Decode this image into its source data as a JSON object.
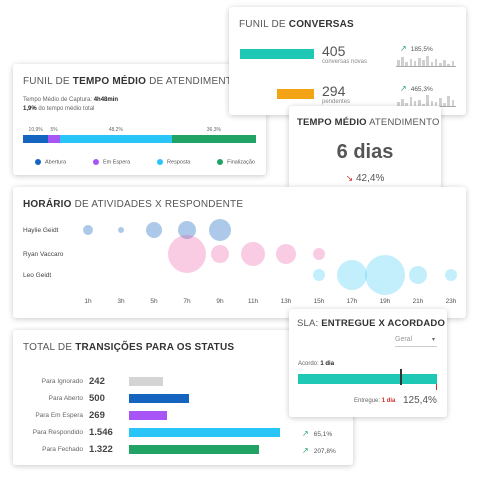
{
  "funil_tempo": {
    "title_a": "FUNIL DE ",
    "title_b": "TEMPO MÉDIO",
    "title_c": " DE ATENDIMENTO",
    "capture_label": "Tempo Médio de Captura: ",
    "capture_value": "4h48min",
    "pct_value": "1,9%",
    "pct_label": " do tempo médio total",
    "segments": [
      {
        "pct": "10,9%",
        "value": 10.9,
        "color": "#1565c0",
        "label": "Abertura"
      },
      {
        "pct": "5%",
        "value": 5,
        "color": "#a855f7",
        "label": "Em Espera"
      },
      {
        "pct": "48,2%",
        "value": 48.2,
        "color": "#29c5f6",
        "label": "Resposta"
      },
      {
        "pct": "36,3%",
        "value": 36.3,
        "color": "#21a366",
        "label": "Finalização"
      }
    ]
  },
  "funil_conversas": {
    "title_a": "FUNIL DE ",
    "title_b": "CONVERSAS",
    "rows": [
      {
        "value": "405",
        "label": "conversas novas",
        "trend": "185,5%",
        "color": "#1ec8b5",
        "fill": 1.0
      },
      {
        "value": "294",
        "label": "pendentes",
        "trend": "465,3%",
        "color": "#f2a414",
        "fill": 0.5
      }
    ]
  },
  "tempo_medio": {
    "title_b": "TEMPO MÉDIO",
    "title_c": " ATENDIMENTO",
    "value": "6 dias",
    "trend": "42,4%"
  },
  "horario": {
    "title_b": "HORÁRIO",
    "title_c": " DE ATIVIDADES X RESPONDENTE",
    "people": [
      "Haylie Geidt",
      "Ryan Vaccaro",
      "Leo Geidt"
    ],
    "hours": [
      "1h",
      "3h",
      "5h",
      "7h",
      "9h",
      "11h",
      "13h",
      "15h",
      "17h",
      "19h",
      "21h",
      "23h"
    ]
  },
  "transicoes": {
    "title_a": "TOTAL DE ",
    "title_b": "TRANSIÇÕES PARA OS STATUS",
    "rows": [
      {
        "label": "Para Ignorado",
        "value": "242",
        "color": "#d4d4d4",
        "fill": 0.22,
        "trend": ""
      },
      {
        "label": "Para Aberto",
        "value": "500",
        "color": "#1565c0",
        "fill": 0.39,
        "trend": ""
      },
      {
        "label": "Para Em Espera",
        "value": "269",
        "color": "#a855f7",
        "fill": 0.25,
        "trend": ""
      },
      {
        "label": "Para Respondido",
        "value": "1.546",
        "color": "#29c5f6",
        "fill": 0.99,
        "trend": "65,1%"
      },
      {
        "label": "Para Fechado",
        "value": "1.322",
        "color": "#21a366",
        "fill": 0.85,
        "trend": "207,8%"
      }
    ]
  },
  "sla": {
    "title_a": "SLA: ",
    "title_b": "ENTREGUE X ACORDADO",
    "select_value": "Geral",
    "agreed_label": "Acordo: ",
    "agreed_value": "1 dia",
    "delivered_label": "Entregue: ",
    "delivered_value": "1 dia",
    "percent": "125,4%",
    "fill": 1.0
  }
}
